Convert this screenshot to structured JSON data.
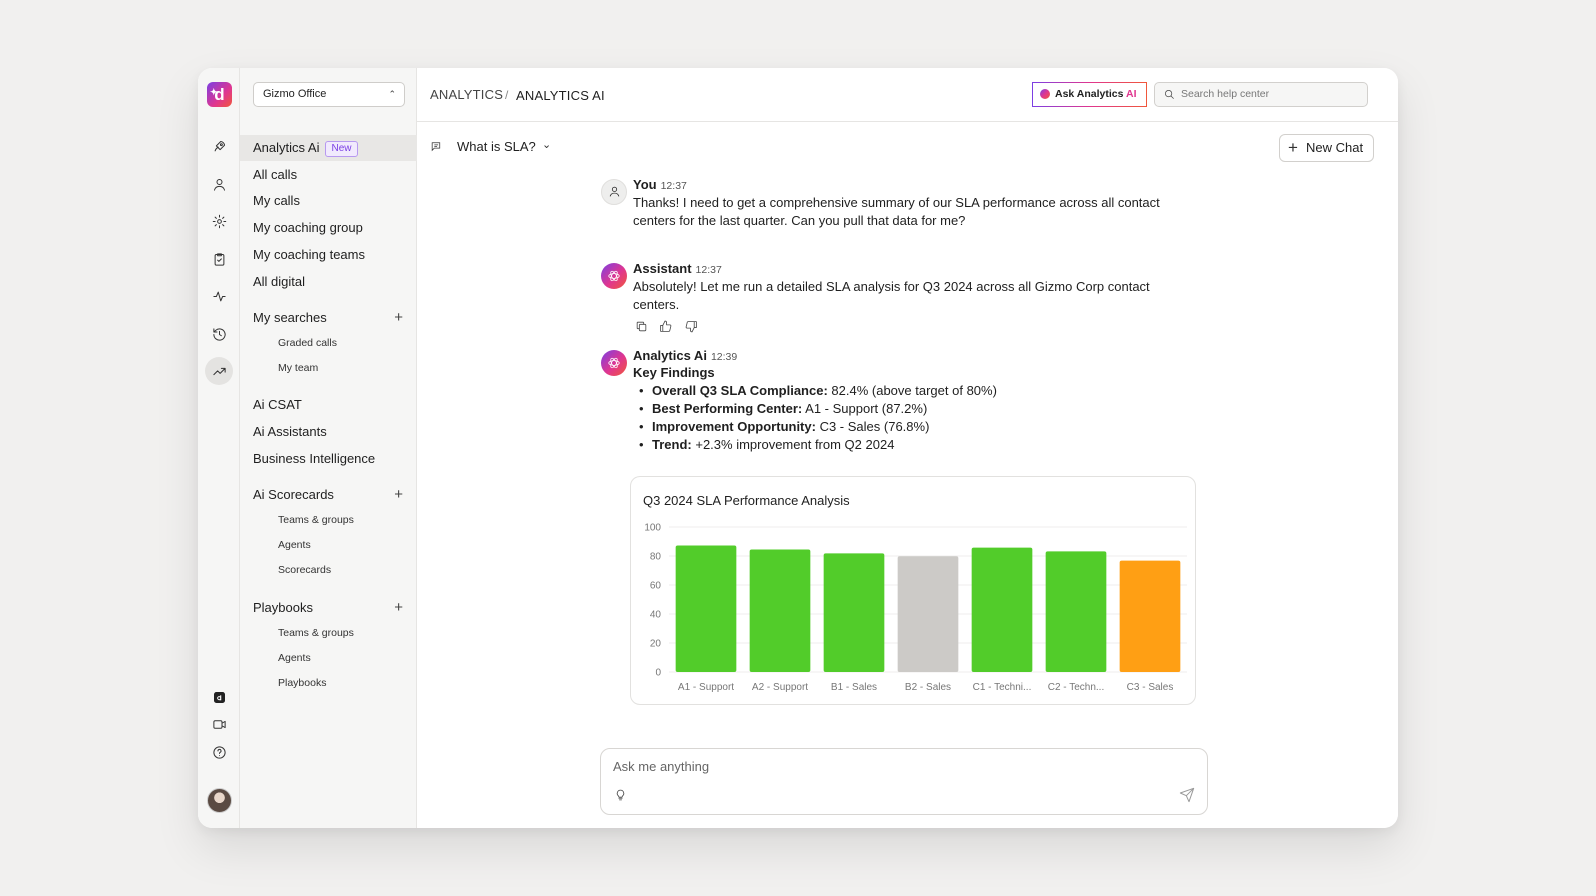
{
  "workspace": {
    "name": "Gizmo Office"
  },
  "breadcrumb": {
    "root": "ANALYTICS",
    "separator": "/",
    "current": "ANALYTICS AI"
  },
  "header": {
    "ask_button_prefix": "Ask Analytics",
    "ask_button_suffix": "AI",
    "search_placeholder": "Search help center"
  },
  "rail": {
    "logo_letter": "d",
    "icons": [
      "rocket-icon",
      "user-icon",
      "gear-icon",
      "clipboard-icon",
      "activity-icon",
      "history-icon",
      "trend-icon",
      "app-logo-icon",
      "video-icon",
      "help-icon"
    ]
  },
  "sidebar": {
    "items": [
      {
        "label": "Analytics Ai",
        "badge": "New"
      },
      {
        "label": "All calls"
      },
      {
        "label": "My calls"
      },
      {
        "label": "My coaching group"
      },
      {
        "label": "My coaching teams"
      },
      {
        "label": "All digital"
      }
    ],
    "my_searches": {
      "label": "My searches",
      "children": [
        "Graded calls",
        "My team"
      ]
    },
    "mid_items": [
      "Ai CSAT",
      "Ai Assistants",
      "Business Intelligence"
    ],
    "ai_scorecards": {
      "label": "Ai Scorecards",
      "children": [
        "Teams & groups",
        "Agents",
        "Scorecards"
      ]
    },
    "playbooks": {
      "label": "Playbooks",
      "children": [
        "Teams & groups",
        "Agents",
        "Playbooks"
      ]
    }
  },
  "chat": {
    "title": "What is SLA?",
    "new_chat_label": "New Chat",
    "messages": [
      {
        "author": "You",
        "time": "12:37",
        "text": "Thanks! I need to get a comprehensive summary of our SLA performance across all contact centers for the last quarter. Can you pull that data for me?"
      },
      {
        "author": "Assistant",
        "time": "12:37",
        "text": "Absolutely! Let me run a detailed SLA analysis for Q3 2024 across all Gizmo Corp contact centers."
      },
      {
        "author": "Analytics Ai",
        "time": "12:39",
        "heading": "Key Findings",
        "findings": [
          {
            "label": "Overall Q3 SLA Compliance:",
            "value": "82.4% (above target of 80%)"
          },
          {
            "label": "Best Performing Center:",
            "value": "A1 - Support (87.2%)"
          },
          {
            "label": "Improvement Opportunity:",
            "value": "C3 - Sales (76.8%)"
          },
          {
            "label": "Trend:",
            "value": "+2.3% improvement from Q2 2024"
          }
        ]
      }
    ],
    "composer_placeholder": "Ask me anything"
  },
  "chart_data": {
    "type": "bar",
    "title": "Q3 2024 SLA Performance Analysis",
    "categories": [
      "A1 - Support",
      "A2 - Support",
      "B1 - Sales",
      "B2 - Sales",
      "C1 - Techni...",
      "C2 - Techn...",
      "C3 - Sales"
    ],
    "values": [
      87.2,
      84.5,
      81.8,
      79.8,
      85.8,
      83.2,
      76.8
    ],
    "colors": [
      "#52cc2a",
      "#52cc2a",
      "#52cc2a",
      "#cccac7",
      "#52cc2a",
      "#52cc2a",
      "#ff9f14"
    ],
    "ylim": [
      0,
      100
    ],
    "yticks": [
      0,
      20,
      40,
      60,
      80,
      100
    ],
    "grid": true,
    "xlabel": "",
    "ylabel": ""
  }
}
